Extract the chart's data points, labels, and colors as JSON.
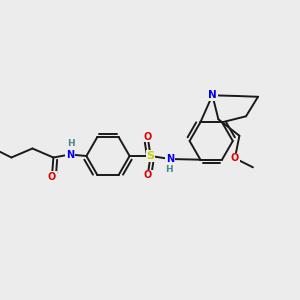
{
  "bg_color": "#ececec",
  "bond_color": "#1a1a1a",
  "bond_width": 1.4,
  "atom_colors": {
    "C": "#1a1a1a",
    "H": "#4a8888",
    "N": "#0000ee",
    "O": "#dd0000",
    "S": "#cccc00"
  },
  "figsize": [
    3.0,
    3.0
  ],
  "dpi": 100
}
